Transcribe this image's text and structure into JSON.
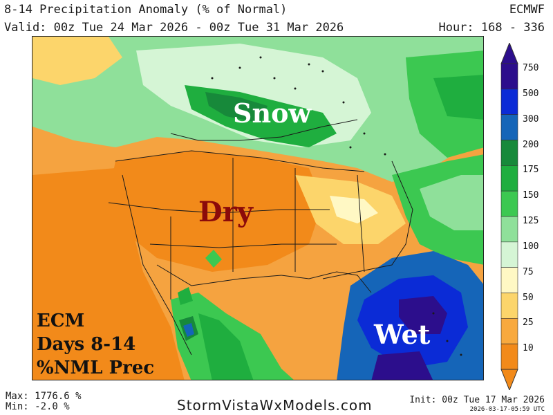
{
  "header": {
    "title": "8-14 Precipitation Anomaly (% of Normal)",
    "valid": "Valid: 00z Tue 24 Mar 2026 - 00z Tue 31 Mar 2026",
    "model": "ECMWF",
    "hour": "Hour: 168 - 336"
  },
  "map_labels": {
    "snow": "Snow",
    "dry": "Dry",
    "wet": "Wet",
    "info_line1": "ECM",
    "info_line2": "Days 8-14",
    "info_line3": "%NML Prec"
  },
  "legend": {
    "levels": [
      {
        "label": "750",
        "color": "#2c0e8c"
      },
      {
        "label": "500",
        "color": "#0b2bd6"
      },
      {
        "label": "300",
        "color": "#1565b8"
      },
      {
        "label": "200",
        "color": "#17893a"
      },
      {
        "label": "175",
        "color": "#1fae3f"
      },
      {
        "label": "150",
        "color": "#3cc851"
      },
      {
        "label": "125",
        "color": "#8fe09a"
      },
      {
        "label": "100",
        "color": "#d5f5d5"
      },
      {
        "label": "75",
        "color": "#fff8c4"
      },
      {
        "label": "50",
        "color": "#fcd56b"
      },
      {
        "label": "25",
        "color": "#f8a93e"
      },
      {
        "label": "10",
        "color": "#f28a1a"
      }
    ]
  },
  "footer": {
    "max": "Max: 1776.6 %",
    "min": "Min: -2.0 %",
    "site": "StormVistaWxModels.com",
    "init": "Init: 00z Tue 17 Mar 2026",
    "stamp": "2026-03-17-05:59 UTC"
  }
}
